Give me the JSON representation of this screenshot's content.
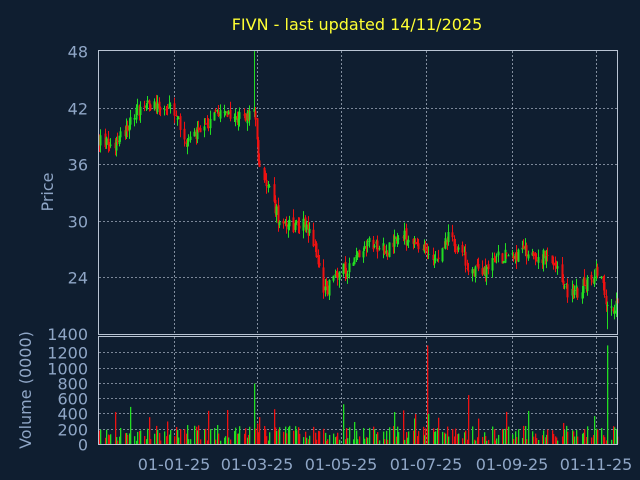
{
  "title": "FIVN - last updated 14/11/2025",
  "colors": {
    "background": "#0f1e30",
    "up": "#22dd22",
    "down": "#ee1111",
    "title": "#ffff33",
    "axis_text": "#8fa6c6",
    "grid": "#b9c4d3"
  },
  "chart_data": [
    {
      "type": "candlestick",
      "ylabel": "Price",
      "ylim": [
        18,
        48
      ],
      "yticks": [
        "48",
        "42",
        "36",
        "30",
        "24"
      ],
      "ytick_values": [
        48,
        42,
        36,
        30,
        24
      ],
      "xticks": [
        "01-01-25",
        "01-03-25",
        "01-05-25",
        "01-07-25",
        "01-09-25",
        "01-11-25"
      ],
      "grid": true,
      "x_start": "2024-11-14",
      "x_end": "2025-11-14",
      "anchors": [
        [
          "2024-11-14",
          38.5
        ],
        [
          "2024-11-25",
          38.0
        ],
        [
          "2024-12-05",
          40.5
        ],
        [
          "2024-12-15",
          42.5
        ],
        [
          "2024-12-25",
          42.3
        ],
        [
          "2025-01-05",
          41.5
        ],
        [
          "2025-01-15",
          38.5
        ],
        [
          "2025-01-25",
          39.5
        ],
        [
          "2025-02-05",
          41.5
        ],
        [
          "2025-02-15",
          41.0
        ],
        [
          "2025-02-25",
          41.0
        ],
        [
          "2025-03-03",
          41.5
        ],
        [
          "2025-03-06",
          37.0
        ],
        [
          "2025-03-12",
          34.0
        ],
        [
          "2025-03-20",
          30.5
        ],
        [
          "2025-04-01",
          29.5
        ],
        [
          "2025-04-08",
          30.0
        ],
        [
          "2025-04-15",
          27.0
        ],
        [
          "2025-04-22",
          22.5
        ],
        [
          "2025-05-01",
          24.5
        ],
        [
          "2025-05-12",
          25.5
        ],
        [
          "2025-05-22",
          28.0
        ],
        [
          "2025-06-05",
          27.0
        ],
        [
          "2025-06-15",
          28.5
        ],
        [
          "2025-06-25",
          27.0
        ],
        [
          "2025-07-10",
          26.5
        ],
        [
          "2025-07-20",
          28.5
        ],
        [
          "2025-08-01",
          25.0
        ],
        [
          "2025-08-10",
          24.5
        ],
        [
          "2025-08-20",
          26.0
        ],
        [
          "2025-09-01",
          26.5
        ],
        [
          "2025-09-15",
          26.5
        ],
        [
          "2025-09-25",
          26.0
        ],
        [
          "2025-10-05",
          24.0
        ],
        [
          "2025-10-12",
          22.0
        ],
        [
          "2025-10-20",
          23.0
        ],
        [
          "2025-10-27",
          24.0
        ],
        [
          "2025-11-03",
          24.5
        ],
        [
          "2025-11-07",
          21.0
        ],
        [
          "2025-11-14",
          21.0
        ]
      ],
      "spikes": [
        [
          "2025-03-03",
          48.0
        ],
        [
          "2025-11-07",
          18.5
        ]
      ]
    },
    {
      "type": "bar",
      "ylabel": "Volume (0000)",
      "ylim": [
        0,
        1400
      ],
      "yticks": [
        "1400",
        "1200",
        "1000",
        "800",
        "600",
        "400",
        "200",
        "0"
      ],
      "ytick_values": [
        1400,
        1200,
        1000,
        800,
        600,
        400,
        200,
        0
      ],
      "grid": true,
      "spikes": [
        [
          "2024-11-16",
          600
        ],
        [
          "2025-03-03",
          790
        ],
        [
          "2025-05-05",
          520
        ],
        [
          "2025-07-03",
          1290
        ],
        [
          "2025-08-01",
          640
        ],
        [
          "2025-11-07",
          1290
        ]
      ]
    }
  ]
}
